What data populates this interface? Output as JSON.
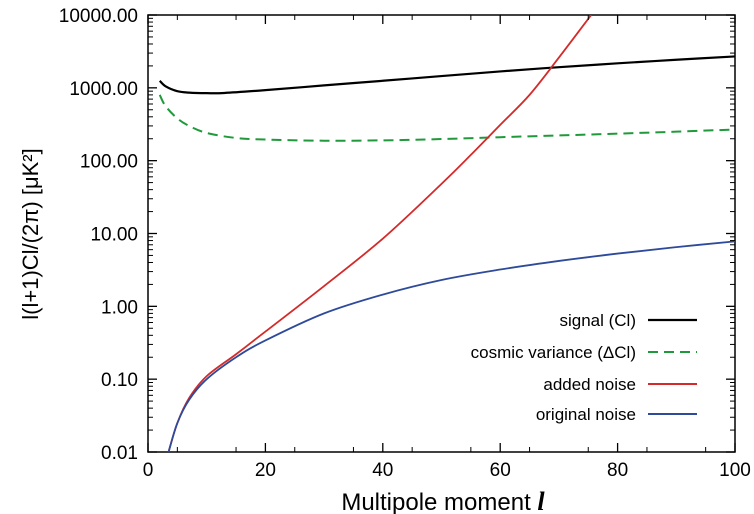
{
  "chart_data": {
    "type": "line",
    "xlabel": "Multipole moment l",
    "ylabel": "l(l+1)Cl/(2π) [μK²]",
    "x_scale": "linear",
    "y_scale": "log",
    "xlim": [
      0,
      100
    ],
    "ylim": [
      0.01,
      10000
    ],
    "x_ticks": [
      "0",
      "20",
      "40",
      "60",
      "80",
      "100"
    ],
    "y_ticks": [
      "0.01",
      "0.10",
      "1.00",
      "10.00",
      "100.00",
      "1000.00",
      "10000.00"
    ],
    "grid": false,
    "legend_position": "bottom-right",
    "series": [
      {
        "name": "signal (Cl)",
        "color": "#000000",
        "style": "solid",
        "x": [
          2,
          3,
          5,
          7,
          10,
          13,
          20,
          30,
          40,
          50,
          60,
          70,
          80,
          90,
          100
        ],
        "y": [
          1250,
          1050,
          900,
          860,
          845,
          850,
          930,
          1080,
          1250,
          1450,
          1680,
          1920,
          2170,
          2430,
          2700
        ]
      },
      {
        "name": "cosmic variance (ΔCl)",
        "color": "#1f9a3a",
        "style": "dashed",
        "x": [
          2,
          3,
          5,
          7,
          10,
          15,
          20,
          30,
          40,
          50,
          60,
          70,
          80,
          90,
          100
        ],
        "y": [
          800,
          560,
          380,
          300,
          240,
          205,
          195,
          188,
          190,
          198,
          210,
          222,
          235,
          250,
          268
        ]
      },
      {
        "name": "added noise",
        "color": "#d42a2a",
        "style": "solid",
        "x": [
          3.5,
          5,
          7,
          10,
          15,
          20,
          30,
          40,
          50,
          55,
          60,
          65,
          70,
          75.5
        ],
        "y": [
          0.01,
          0.025,
          0.055,
          0.11,
          0.22,
          0.45,
          1.9,
          8.5,
          48,
          120,
          310,
          800,
          2600,
          10000
        ]
      },
      {
        "name": "original noise",
        "color": "#2e4a9a",
        "style": "solid",
        "x": [
          3.5,
          5,
          7,
          10,
          15,
          20,
          30,
          40,
          50,
          60,
          70,
          80,
          90,
          100
        ],
        "y": [
          0.01,
          0.025,
          0.052,
          0.1,
          0.2,
          0.34,
          0.8,
          1.45,
          2.3,
          3.2,
          4.2,
          5.3,
          6.5,
          7.8
        ]
      }
    ]
  }
}
